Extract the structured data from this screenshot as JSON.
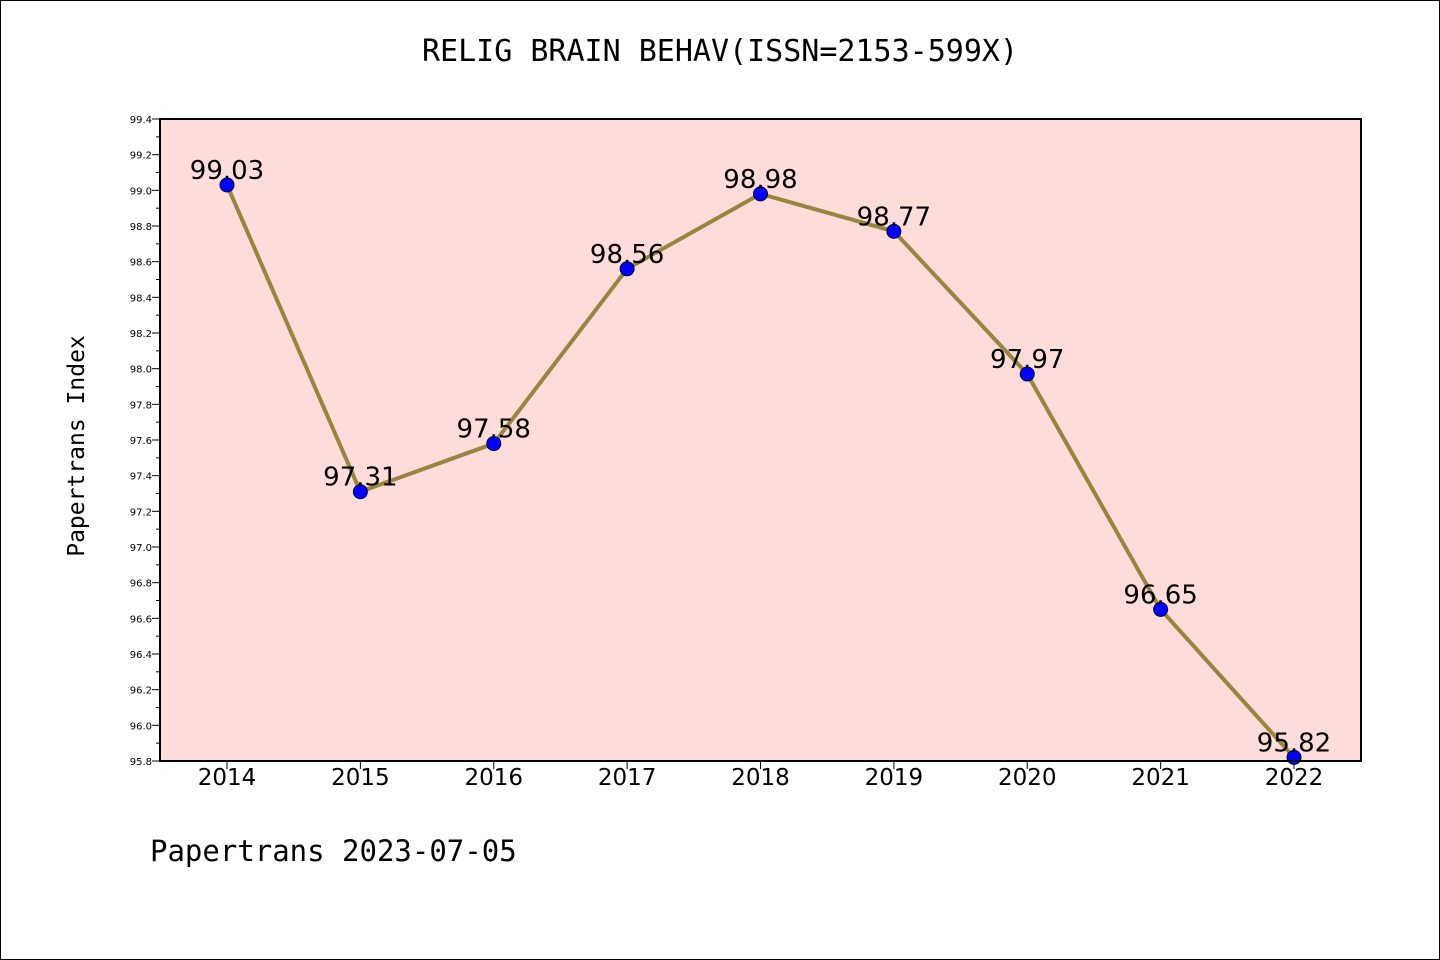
{
  "chart_data": {
    "type": "line",
    "title": "RELIG BRAIN BEHAV(ISSN=2153-599X)",
    "ylabel": "Papertrans Index",
    "xlabel": "",
    "categories": [
      "2014",
      "2015",
      "2016",
      "2017",
      "2018",
      "2019",
      "2020",
      "2021",
      "2022"
    ],
    "values": [
      99.03,
      97.31,
      97.58,
      98.56,
      98.98,
      98.77,
      97.97,
      96.65,
      95.82
    ],
    "data_labels": [
      "99.03",
      "97.31",
      "97.58",
      "98.56",
      "98.98",
      "98.77",
      "97.97",
      "96.65",
      "95.82"
    ],
    "ylim": [
      95.8,
      99.4
    ],
    "yticks": [
      "95.8",
      "96.0",
      "96.2",
      "96.4",
      "96.6",
      "96.8",
      "97.0",
      "97.2",
      "97.4",
      "97.6",
      "97.8",
      "98.0",
      "98.2",
      "98.4",
      "98.6",
      "98.8",
      "99.0",
      "99.2",
      "99.4"
    ],
    "grid": false,
    "colors": {
      "plot_background": "#FDDCDA",
      "line": "#9A8540",
      "marker": "#0000FF"
    }
  },
  "footer": {
    "note": "Papertrans 2023-07-05"
  }
}
